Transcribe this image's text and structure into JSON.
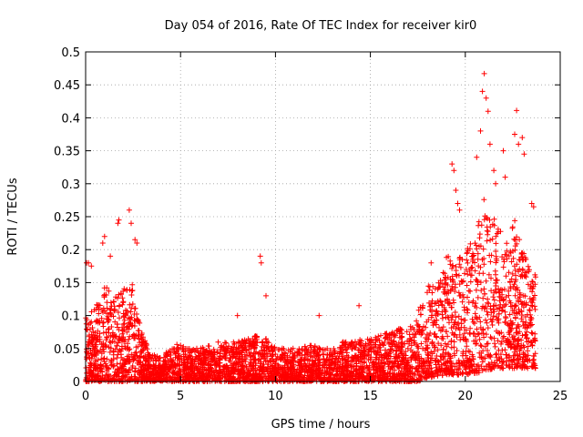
{
  "chart_data": {
    "type": "scatter",
    "title": "Day 054 of 2016, Rate Of TEC Index for receiver kir0",
    "xlabel": "GPS time / hours",
    "ylabel": "ROTI / TECUs",
    "xlim": [
      0,
      25
    ],
    "ylim": [
      0,
      0.5
    ],
    "x_ticks": [
      0,
      5,
      10,
      15,
      20,
      25
    ],
    "x_tick_labels": [
      "0",
      "5",
      "10",
      "15",
      "20",
      "25"
    ],
    "y_ticks": [
      0,
      0.05,
      0.1,
      0.15,
      0.2,
      0.25,
      0.3,
      0.35,
      0.4,
      0.45,
      0.5
    ],
    "y_tick_labels": [
      "0",
      "0.05",
      "0.1",
      "0.15",
      "0.2",
      "0.25",
      "0.3",
      "0.35",
      "0.4",
      "0.45",
      "0.5"
    ],
    "grid": true,
    "marker": "+",
    "color": "#ff0000",
    "envelope": {
      "x": [
        0,
        0.5,
        1,
        1.5,
        2,
        2.5,
        3,
        3.5,
        4,
        4.5,
        5,
        5.5,
        6,
        6.5,
        7,
        7.5,
        8,
        8.5,
        9,
        9.5,
        10,
        10.5,
        11,
        11.5,
        12,
        12.5,
        13,
        13.5,
        14,
        14.5,
        15,
        15.5,
        16,
        16.5,
        17,
        17.5,
        18,
        18.5,
        19,
        19.5,
        20,
        20.5,
        21,
        21.5,
        22,
        22.5,
        23,
        23.5
      ],
      "low": [
        0.0,
        0.0,
        0.0,
        0.0,
        0.0,
        0.0,
        0.0,
        0.0,
        0.0,
        0.0,
        0.0,
        0.0,
        0.0,
        0.0,
        0.0,
        0.0,
        0.0,
        0.0,
        0.0,
        0.0,
        0.0,
        0.0,
        0.0,
        0.0,
        0.0,
        0.0,
        0.0,
        0.0,
        0.0,
        0.0,
        0.0,
        0.0,
        0.0,
        0.0,
        0.0,
        0.0,
        0.005,
        0.008,
        0.01,
        0.01,
        0.01,
        0.012,
        0.015,
        0.02,
        0.02,
        0.02,
        0.02,
        0.02
      ],
      "high": [
        0.1,
        0.11,
        0.15,
        0.13,
        0.14,
        0.15,
        0.07,
        0.04,
        0.04,
        0.05,
        0.06,
        0.05,
        0.05,
        0.055,
        0.06,
        0.06,
        0.06,
        0.065,
        0.07,
        0.065,
        0.055,
        0.05,
        0.05,
        0.055,
        0.055,
        0.05,
        0.05,
        0.06,
        0.06,
        0.065,
        0.065,
        0.07,
        0.075,
        0.08,
        0.08,
        0.11,
        0.15,
        0.14,
        0.2,
        0.18,
        0.2,
        0.22,
        0.28,
        0.25,
        0.22,
        0.26,
        0.2,
        0.17
      ]
    },
    "outliers": [
      {
        "x": 0.05,
        "y": 0.18
      },
      {
        "x": 0.15,
        "y": 0.18
      },
      {
        "x": 0.3,
        "y": 0.175
      },
      {
        "x": 0.9,
        "y": 0.21
      },
      {
        "x": 1.0,
        "y": 0.22
      },
      {
        "x": 1.3,
        "y": 0.19
      },
      {
        "x": 1.7,
        "y": 0.24
      },
      {
        "x": 1.75,
        "y": 0.245
      },
      {
        "x": 2.3,
        "y": 0.26
      },
      {
        "x": 2.4,
        "y": 0.24
      },
      {
        "x": 2.6,
        "y": 0.215
      },
      {
        "x": 2.7,
        "y": 0.21
      },
      {
        "x": 9.2,
        "y": 0.19
      },
      {
        "x": 9.25,
        "y": 0.18
      },
      {
        "x": 9.5,
        "y": 0.13
      },
      {
        "x": 8.0,
        "y": 0.1
      },
      {
        "x": 12.3,
        "y": 0.1
      },
      {
        "x": 14.4,
        "y": 0.115
      },
      {
        "x": 18.2,
        "y": 0.18
      },
      {
        "x": 19.3,
        "y": 0.33
      },
      {
        "x": 19.4,
        "y": 0.32
      },
      {
        "x": 19.5,
        "y": 0.29
      },
      {
        "x": 19.6,
        "y": 0.27
      },
      {
        "x": 19.7,
        "y": 0.26
      },
      {
        "x": 20.6,
        "y": 0.34
      },
      {
        "x": 20.8,
        "y": 0.38
      },
      {
        "x": 20.9,
        "y": 0.44
      },
      {
        "x": 21.0,
        "y": 0.467
      },
      {
        "x": 21.1,
        "y": 0.43
      },
      {
        "x": 21.2,
        "y": 0.41
      },
      {
        "x": 21.3,
        "y": 0.36
      },
      {
        "x": 21.5,
        "y": 0.32
      },
      {
        "x": 21.6,
        "y": 0.3
      },
      {
        "x": 22.0,
        "y": 0.35
      },
      {
        "x": 22.1,
        "y": 0.31
      },
      {
        "x": 22.6,
        "y": 0.375
      },
      {
        "x": 22.7,
        "y": 0.411
      },
      {
        "x": 22.8,
        "y": 0.36
      },
      {
        "x": 23.0,
        "y": 0.37
      },
      {
        "x": 23.1,
        "y": 0.345
      },
      {
        "x": 23.5,
        "y": 0.27
      },
      {
        "x": 23.6,
        "y": 0.265
      }
    ]
  }
}
